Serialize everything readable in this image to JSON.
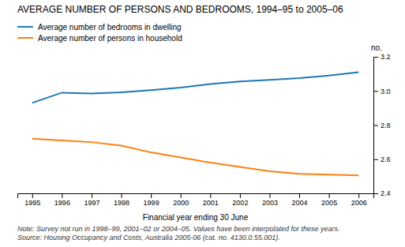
{
  "chart_data": {
    "type": "line",
    "title": "AVERAGE NUMBER OF PERSONS AND BEDROOMS, 1994–95 to 2005–06",
    "xlabel": "Financial year ending 30 June",
    "ylabel": "no.",
    "x": [
      1995,
      1996,
      1997,
      1998,
      1999,
      2000,
      2001,
      2002,
      2003,
      2004,
      2005,
      2006
    ],
    "series": [
      {
        "name": "Average number of bedrooms in dwelling",
        "values": [
          2.93,
          2.99,
          2.985,
          2.992,
          3.005,
          3.02,
          3.04,
          3.055,
          3.065,
          3.075,
          3.09,
          3.11
        ]
      },
      {
        "name": "Average number of persons in household",
        "values": [
          2.72,
          2.71,
          2.7,
          2.68,
          2.64,
          2.61,
          2.58,
          2.555,
          2.53,
          2.515,
          2.51,
          2.505
        ]
      }
    ],
    "xlim": [
      1994.5,
      2006.5
    ],
    "xticks": [
      1995,
      1996,
      1997,
      1998,
      1999,
      2000,
      2001,
      2002,
      2003,
      2004,
      2005,
      2006
    ],
    "ylim": [
      2.4,
      3.2
    ],
    "yticks": [
      2.4,
      2.6,
      2.8,
      {
        "value": 3.0,
        "label": "3.0"
      },
      3.2
    ],
    "annotations": [
      "Note: Survey not run in 1998–99, 2001–02 or 2004–05. Values have been interpolated for these years.",
      "Source: Housing Occupancy and Costs, Australia 2005-06 (cat. no. 4130.0.55.001)."
    ],
    "legend": "top",
    "grid": false
  }
}
